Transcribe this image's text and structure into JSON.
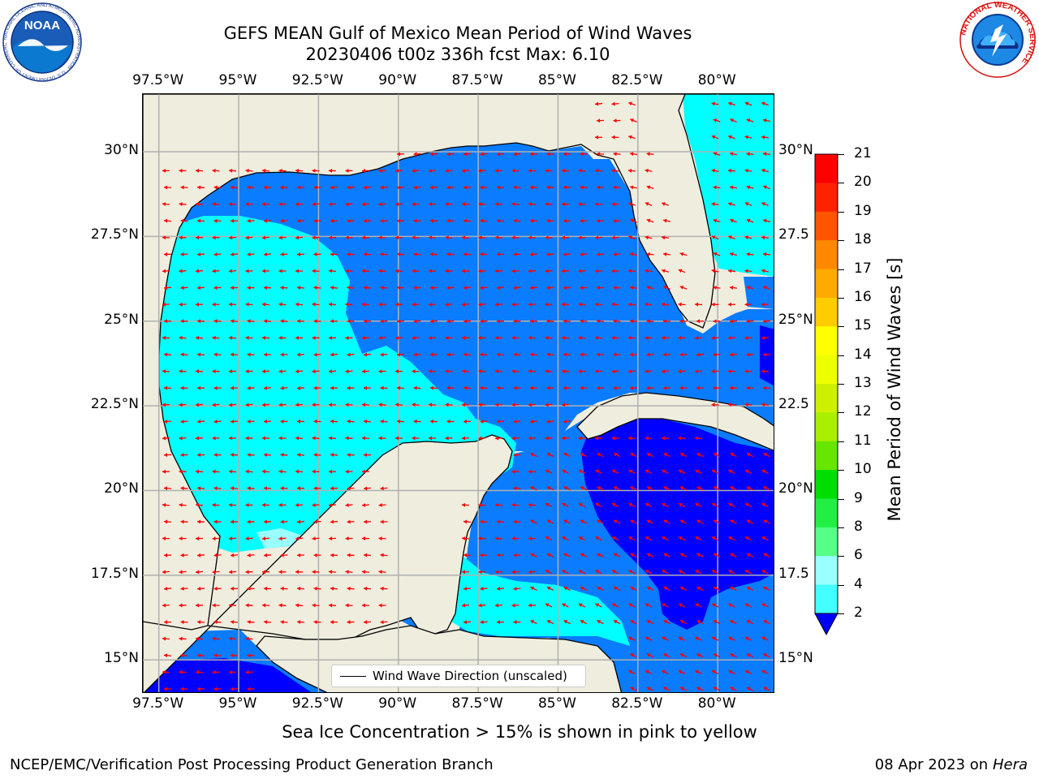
{
  "title": {
    "line1": "GEFS MEAN Gulf of Mexico Mean Period of Wind Waves",
    "line2": "20230406 t00z 336h fcst   Max: 6.10"
  },
  "logos": {
    "left": {
      "name": "noaa-logo",
      "text": "NOAA",
      "ring_text": "NATIONAL OCEANIC AND ATMOSPHERIC ADMINISTRATION · U.S. DEPARTMENT OF COMMERCE"
    },
    "right": {
      "name": "nws-logo",
      "ring_text": "NATIONAL WEATHER SERVICE"
    }
  },
  "map": {
    "lon_ticks_top": [
      "97.5°W",
      "95°W",
      "92.5°W",
      "90°W",
      "87.5°W",
      "85°W",
      "82.5°W",
      "80°W"
    ],
    "lon_ticks_bottom": [
      "97.5°W",
      "95°W",
      "92.5°W",
      "90°W",
      "87.5°W",
      "85°W",
      "82.5°W",
      "80°W"
    ],
    "lat_ticks_left": [
      "30°N",
      "27.5°N",
      "25°N",
      "22.5°N",
      "20°N",
      "17.5°N",
      "15°N"
    ],
    "lat_ticks_right": [
      "30°N",
      "27.5",
      "25°N",
      "22.5",
      "20°N",
      "17.5",
      "15°N"
    ],
    "lon_values": [
      -97.5,
      -95,
      -92.5,
      -90,
      -87.5,
      -85,
      -82.5,
      -80
    ],
    "lat_values": [
      30,
      27.5,
      25,
      22.5,
      20,
      17.5,
      15
    ],
    "extent": {
      "lon_min": -98,
      "lon_max": -78.2,
      "lat_min": 14,
      "lat_max": 31.7
    },
    "legend_label": "Wind Wave Direction (unscaled)",
    "colors": {
      "land": "#efedde",
      "coast": "#000000",
      "grid": "#b0b0b0",
      "arrow": "#ff0000"
    }
  },
  "colorbar": {
    "label": "Mean Period of Wind Waves [s]",
    "ticks": [
      "2",
      "4",
      "6",
      "8",
      "9",
      "10",
      "11",
      "12",
      "13",
      "14",
      "15",
      "16",
      "17",
      "18",
      "19",
      "20",
      "21"
    ],
    "extend": "min",
    "under_color": "#0000ff",
    "colors": [
      "#0a7cff",
      "#00ffff",
      "#44ffff",
      "#99ffff",
      "#55ff88",
      "#22ee44",
      "#00dd00",
      "#66e600",
      "#aaee00",
      "#ccf000",
      "#eeff00",
      "#ffff00",
      "#ffcc00",
      "#ffaa00",
      "#ff8800",
      "#ff5500",
      "#ff2200",
      "#ff0000"
    ]
  },
  "notes": {
    "ice": "Sea Ice Concentration > 15% is shown in pink to yellow"
  },
  "footer": {
    "left": "NCEP/EMC/Verification Post Processing Product Generation Branch",
    "right_date": "08 Apr 2023 on ",
    "right_host": "Hera"
  }
}
